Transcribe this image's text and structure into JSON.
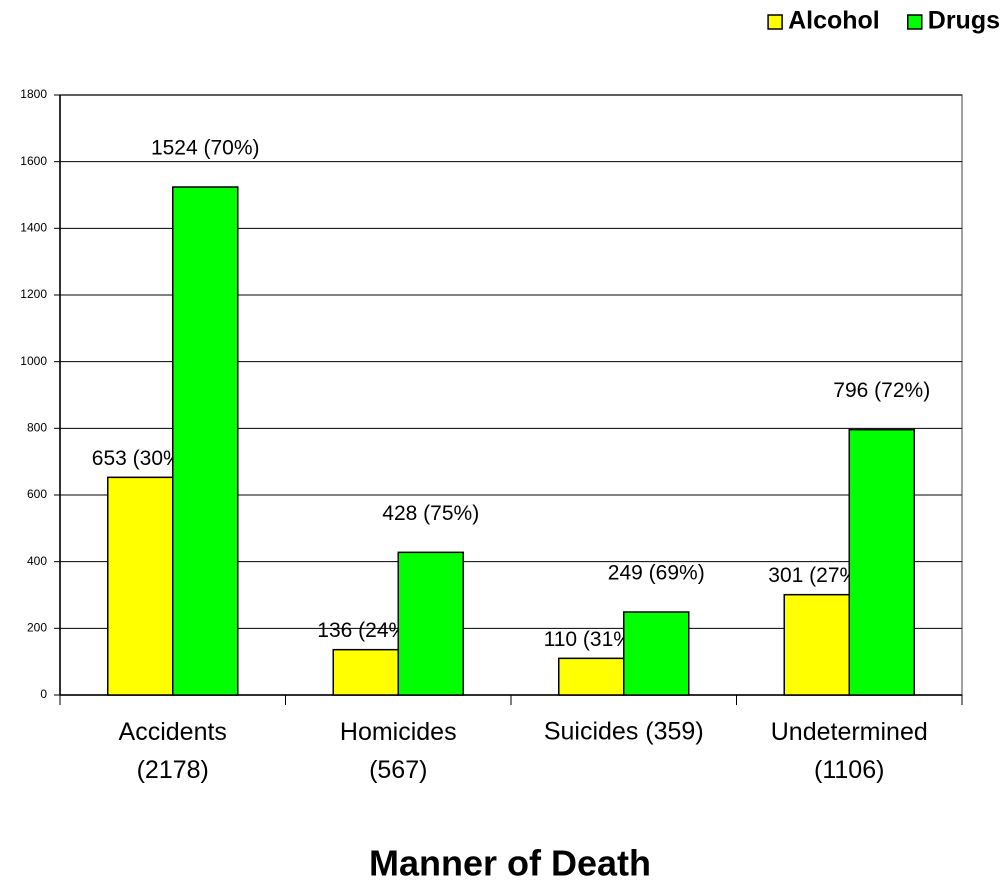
{
  "chart_data": {
    "type": "bar",
    "x_label": "Manner of Death",
    "categories": [
      "Accidents\n(2178)",
      "Homicides\n(567)",
      "Suicides (359)",
      "Undetermined\n(1106)"
    ],
    "series": [
      {
        "name": "Alcohol",
        "color": "#ffff00",
        "values": [
          653,
          136,
          110,
          301
        ],
        "value_labels": [
          "653 (30%)",
          "136 (24%)",
          "110 (31%)",
          "301 (27%)"
        ]
      },
      {
        "name": "Drugs",
        "color": "#00ff00",
        "values": [
          1524,
          428,
          249,
          796
        ],
        "value_labels": [
          "1524 (70%)",
          "428 (75%)",
          "249 (69%)",
          "796 (72%)"
        ]
      }
    ],
    "ylim": [
      0,
      1800
    ],
    "yticks": [
      0,
      200,
      400,
      600,
      800,
      1000,
      1200,
      1400,
      1600,
      1800
    ],
    "grid": true,
    "legend": "top-right"
  }
}
